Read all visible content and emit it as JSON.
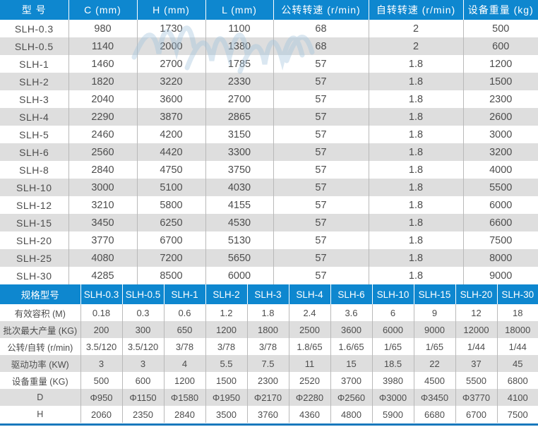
{
  "colors": {
    "header_bg": "#0e87cf",
    "stripe_bg": "#dedede",
    "text": "#4d4d4d",
    "divider": "#b9b9b9",
    "bottom_accent": "#1878bd"
  },
  "icons": {
    "watermark": "wavy-lines-watermark"
  },
  "spec_table": {
    "columns": [
      "型 号",
      "C (mm)",
      "H (mm)",
      "L (mm)",
      "公转转速 (r/min)",
      "自转转速 (r/min)",
      "设备重量 (kg)"
    ],
    "rows": [
      [
        "SLH-0.3",
        "980",
        "1730",
        "1100",
        "68",
        "2",
        "500"
      ],
      [
        "SLH-0.5",
        "1140",
        "2000",
        "1380",
        "68",
        "2",
        "600"
      ],
      [
        "SLH-1",
        "1460",
        "2700",
        "1785",
        "57",
        "1.8",
        "1200"
      ],
      [
        "SLH-2",
        "1820",
        "3220",
        "2330",
        "57",
        "1.8",
        "1500"
      ],
      [
        "SLH-3",
        "2040",
        "3600",
        "2700",
        "57",
        "1.8",
        "2300"
      ],
      [
        "SLH-4",
        "2290",
        "3870",
        "2865",
        "57",
        "1.8",
        "2600"
      ],
      [
        "SLH-5",
        "2460",
        "4200",
        "3150",
        "57",
        "1.8",
        "3000"
      ],
      [
        "SLH-6",
        "2560",
        "4420",
        "3300",
        "57",
        "1.8",
        "3200"
      ],
      [
        "SLH-8",
        "2840",
        "4750",
        "3750",
        "57",
        "1.8",
        "4000"
      ],
      [
        "SLH-10",
        "3000",
        "5100",
        "4030",
        "57",
        "1.8",
        "5500"
      ],
      [
        "SLH-12",
        "3210",
        "5800",
        "4155",
        "57",
        "1.8",
        "6000"
      ],
      [
        "SLH-15",
        "3450",
        "6250",
        "4530",
        "57",
        "1.8",
        "6600"
      ],
      [
        "SLH-20",
        "3770",
        "6700",
        "5130",
        "57",
        "1.8",
        "7500"
      ],
      [
        "SLH-25",
        "4080",
        "7200",
        "5650",
        "57",
        "1.8",
        "8000"
      ],
      [
        "SLH-30",
        "4285",
        "8500",
        "6000",
        "57",
        "1.8",
        "9000"
      ]
    ]
  },
  "model_table": {
    "columns": [
      "规格型号",
      "SLH-0.3",
      "SLH-0.5",
      "SLH-1",
      "SLH-2",
      "SLH-3",
      "SLH-4",
      "SLH-6",
      "SLH-10",
      "SLH-15",
      "SLH-20",
      "SLH-30"
    ],
    "rows": [
      [
        "有效容积 (M)",
        "0.18",
        "0.3",
        "0.6",
        "1.2",
        "1.8",
        "2.4",
        "3.6",
        "6",
        "9",
        "12",
        "18"
      ],
      [
        "批次最大产量 (KG)",
        "200",
        "300",
        "650",
        "1200",
        "1800",
        "2500",
        "3600",
        "6000",
        "9000",
        "12000",
        "18000"
      ],
      [
        "公转/自转 (r/min)",
        "3.5/120",
        "3.5/120",
        "3/78",
        "3/78",
        "3/78",
        "1.8/65",
        "1.6/65",
        "1/65",
        "1/65",
        "1/44",
        "1/44"
      ],
      [
        "驱动功率 (KW)",
        "3",
        "3",
        "4",
        "5.5",
        "7.5",
        "11",
        "15",
        "18.5",
        "22",
        "37",
        "45"
      ],
      [
        "设备重量 (KG)",
        "500",
        "600",
        "1200",
        "1500",
        "2300",
        "2520",
        "3700",
        "3980",
        "4500",
        "5500",
        "6800"
      ],
      [
        "D",
        "Φ950",
        "Φ1150",
        "Φ1580",
        "Φ1950",
        "Φ2170",
        "Φ2280",
        "Φ2560",
        "Φ3000",
        "Φ3450",
        "Φ3770",
        "4100"
      ],
      [
        "H",
        "2060",
        "2350",
        "2840",
        "3500",
        "3760",
        "4360",
        "4800",
        "5900",
        "6680",
        "6700",
        "7500"
      ]
    ]
  }
}
